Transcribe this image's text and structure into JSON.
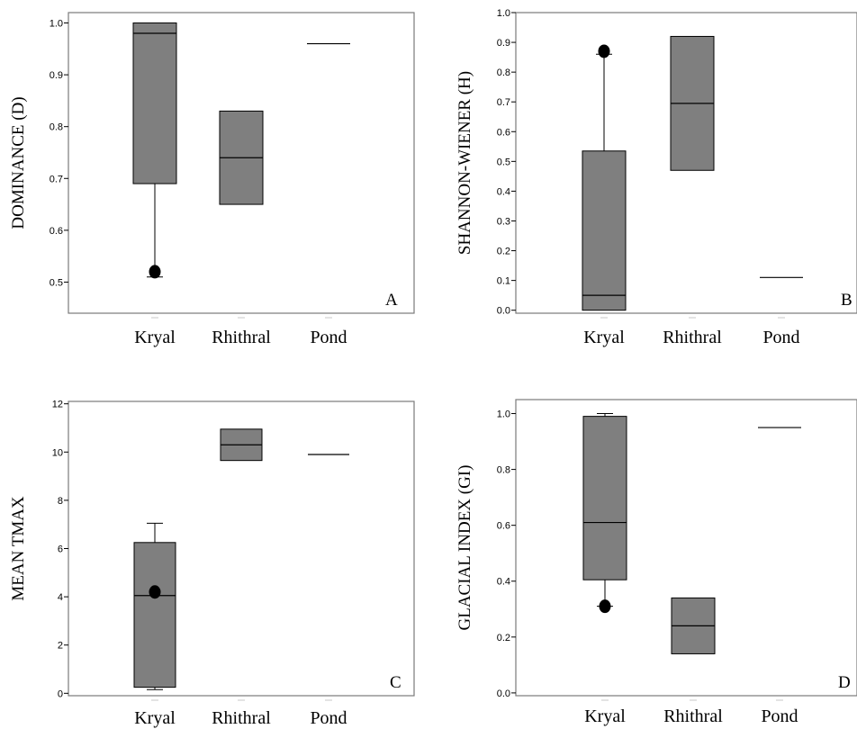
{
  "chart_data": [
    {
      "panel": "A",
      "type": "box",
      "ylabel": "DOMINANCE (D)",
      "categories": [
        "Kryal",
        "Rhithral",
        "Pond"
      ],
      "ylim": [
        0.44,
        1.02
      ],
      "yticks": [
        0.5,
        0.6,
        0.7,
        0.8,
        0.9,
        1.0
      ],
      "ytick_labels": [
        "0.5",
        "0.6",
        "0.7",
        "0.8",
        "0.9",
        "1.0"
      ],
      "boxes": [
        {
          "category": "Kryal",
          "whisker_low": 0.51,
          "q1": 0.69,
          "median": 0.98,
          "q3": 1.0,
          "whisker_high": 1.0,
          "outliers": [
            0.52
          ]
        },
        {
          "category": "Rhithral",
          "whisker_low": 0.65,
          "q1": 0.65,
          "median": 0.74,
          "q3": 0.83,
          "whisker_high": 0.83,
          "outliers": []
        },
        {
          "category": "Pond",
          "whisker_low": 0.96,
          "q1": 0.96,
          "median": 0.96,
          "q3": 0.96,
          "whisker_high": 0.96,
          "outliers": []
        }
      ]
    },
    {
      "panel": "B",
      "type": "box",
      "ylabel": "SHANNON-WIENER (H)",
      "categories": [
        "Kryal",
        "Rhithral",
        "Pond"
      ],
      "ylim": [
        -0.01,
        1.0
      ],
      "yticks": [
        0.0,
        0.1,
        0.2,
        0.3,
        0.4,
        0.5,
        0.6,
        0.7,
        0.8,
        0.9,
        1.0
      ],
      "ytick_labels": [
        "0.0",
        "0.1",
        "0.2",
        "0.3",
        "0.4",
        "0.5",
        "0.6",
        "0.7",
        "0.8",
        "0.9",
        "1.0"
      ],
      "boxes": [
        {
          "category": "Kryal",
          "whisker_low": 0.0,
          "q1": 0.0,
          "median": 0.05,
          "q3": 0.535,
          "whisker_high": 0.86,
          "outliers": [
            0.87
          ]
        },
        {
          "category": "Rhithral",
          "whisker_low": 0.47,
          "q1": 0.47,
          "median": 0.695,
          "q3": 0.92,
          "whisker_high": 0.92,
          "outliers": []
        },
        {
          "category": "Pond",
          "whisker_low": 0.11,
          "q1": 0.11,
          "median": 0.11,
          "q3": 0.11,
          "whisker_high": 0.11,
          "outliers": []
        }
      ]
    },
    {
      "panel": "C",
      "type": "box",
      "ylabel": "MEAN TMAX",
      "categories": [
        "Kryal",
        "Rhithral",
        "Pond"
      ],
      "ylim": [
        -0.1,
        12.1
      ],
      "yticks": [
        0,
        2,
        4,
        6,
        8,
        10,
        12
      ],
      "ytick_labels": [
        "0",
        "2",
        "4",
        "6",
        "8",
        "10",
        "12"
      ],
      "boxes": [
        {
          "category": "Kryal",
          "whisker_low": 0.15,
          "q1": 0.25,
          "median": 4.05,
          "q3": 6.25,
          "whisker_high": 7.05,
          "outliers": [
            4.2
          ]
        },
        {
          "category": "Rhithral",
          "whisker_low": 9.65,
          "q1": 9.65,
          "median": 10.3,
          "q3": 10.95,
          "whisker_high": 10.95,
          "outliers": []
        },
        {
          "category": "Pond",
          "whisker_low": 9.9,
          "q1": 9.9,
          "median": 9.9,
          "q3": 9.9,
          "whisker_high": 9.9,
          "outliers": []
        }
      ]
    },
    {
      "panel": "D",
      "type": "box",
      "ylabel": "GLACIAL INDEX (GI)",
      "categories": [
        "Kryal",
        "Rhithral",
        "Pond"
      ],
      "ylim": [
        -0.01,
        1.05
      ],
      "yticks": [
        0.0,
        0.2,
        0.4,
        0.6,
        0.8,
        1.0
      ],
      "ytick_labels": [
        "0.0",
        "0.2",
        "0.4",
        "0.6",
        "0.8",
        "1.0"
      ],
      "boxes": [
        {
          "category": "Kryal",
          "whisker_low": 0.31,
          "q1": 0.405,
          "median": 0.61,
          "q3": 0.99,
          "whisker_high": 1.0,
          "outliers": [
            0.31
          ]
        },
        {
          "category": "Rhithral",
          "whisker_low": 0.14,
          "q1": 0.14,
          "median": 0.24,
          "q3": 0.34,
          "whisker_high": 0.34,
          "outliers": []
        },
        {
          "category": "Pond",
          "whisker_low": 0.95,
          "q1": 0.95,
          "median": 0.95,
          "q3": 0.95,
          "whisker_high": 0.95,
          "outliers": []
        }
      ]
    }
  ]
}
